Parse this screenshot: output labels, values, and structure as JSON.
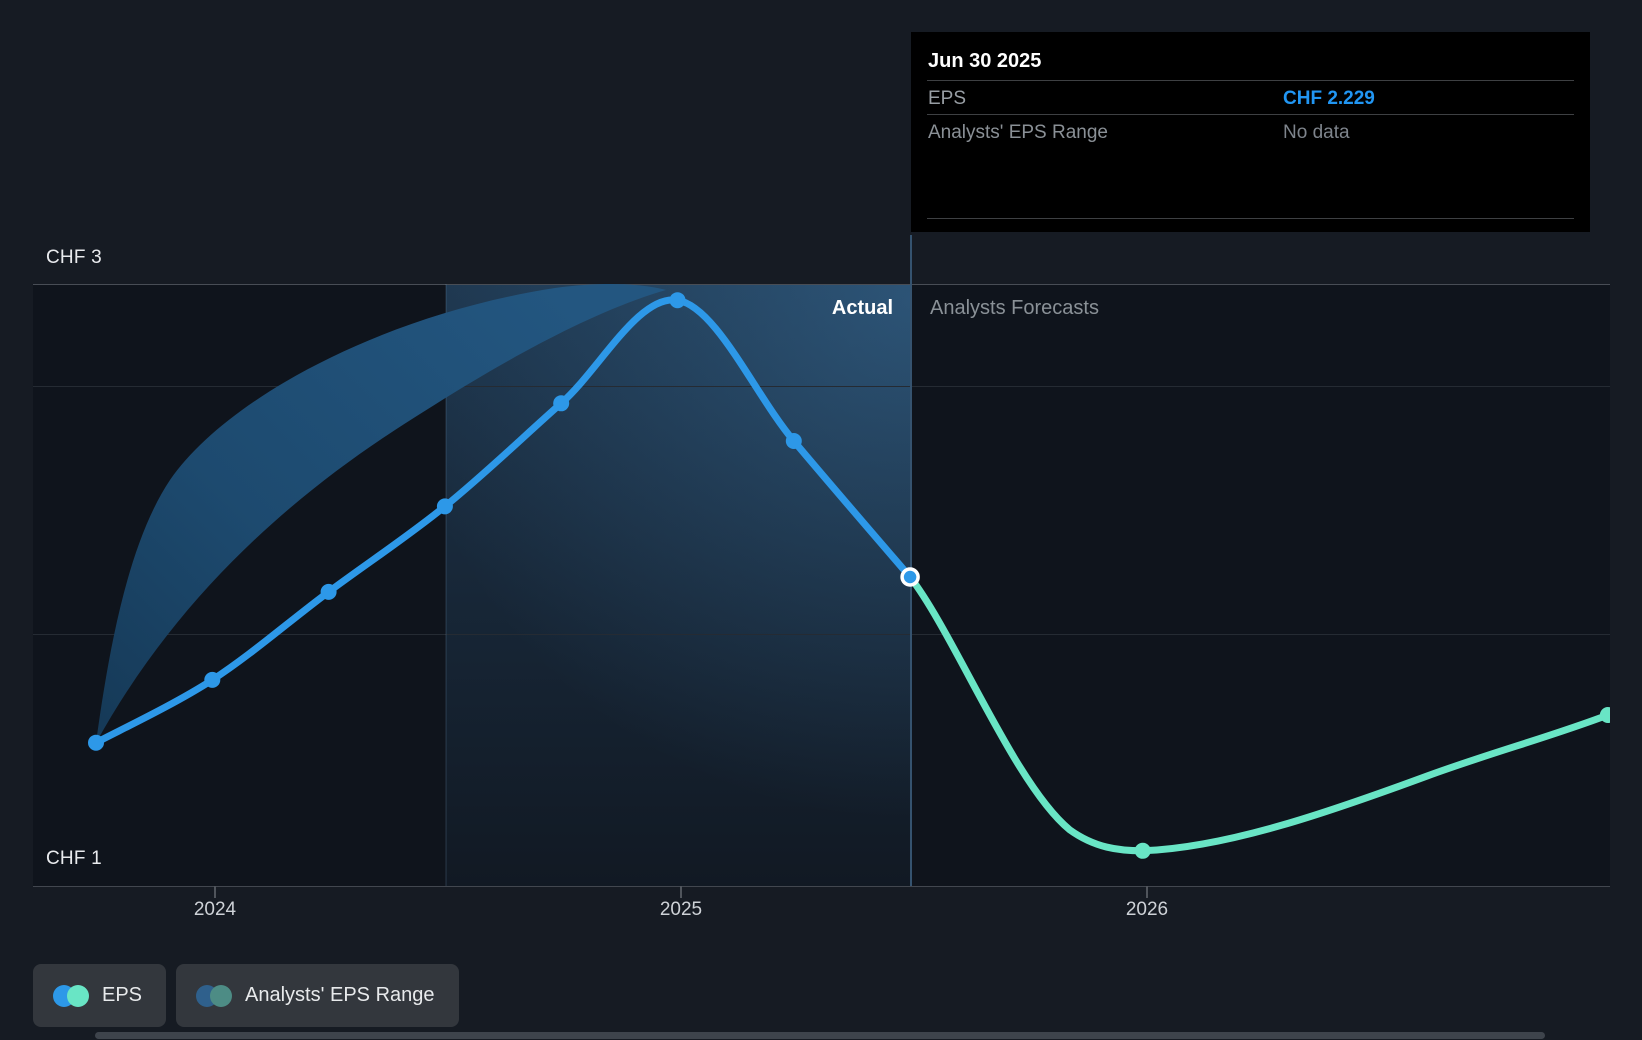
{
  "colors": {
    "eps_actual_blue": "#2D98E8",
    "eps_forecast_teal": "#69E5C5",
    "range_band_blue": "#1D4A6F",
    "tooltip_value_blue": "#2196F3",
    "divider_line": "#35536F",
    "background": "#161B23"
  },
  "tooltip": {
    "title": "Jun 30 2025",
    "rows": [
      {
        "label": "EPS",
        "value": "CHF 2.229",
        "emphasis": "blue"
      },
      {
        "label": "Analysts' EPS Range",
        "value": "No data",
        "emphasis": "muted"
      }
    ]
  },
  "chart_data": {
    "type": "line",
    "currency": "CHF",
    "y_axis": {
      "labels": [
        "CHF 3",
        "CHF 1"
      ],
      "min": 1,
      "max": 3,
      "gridline_values": [
        3,
        2,
        1
      ],
      "grid": true
    },
    "x_axis": {
      "labels": [
        "2024",
        "2025",
        "2026"
      ]
    },
    "region_labels": {
      "actual": "Actual",
      "forecast": "Analysts Forecasts"
    },
    "current_point": {
      "date": "Jun 30 2025",
      "value": 2.229
    },
    "series": [
      {
        "name": "EPS",
        "kind": "actual",
        "color": "#2D98E8",
        "points": [
          {
            "date": "Sep 2023",
            "value": 1.57
          },
          {
            "date": "Dec 2023",
            "value": 1.82
          },
          {
            "date": "Mar 2024",
            "value": 2.17
          },
          {
            "date": "Jun 2024",
            "value": 2.51
          },
          {
            "date": "Sep 2024",
            "value": 2.92
          },
          {
            "date": "Dec 2024",
            "value": 3.33
          },
          {
            "date": "Mar 2025",
            "value": 2.77
          },
          {
            "date": "Jun 2025",
            "value": 2.229
          }
        ]
      },
      {
        "name": "EPS forecast",
        "kind": "forecast",
        "color": "#69E5C5",
        "points": [
          {
            "date": "Jun 2025",
            "value": 2.229
          },
          {
            "date": "Dec 2025",
            "value": 1.14
          },
          {
            "date": "Dec 2026",
            "value": 1.68
          }
        ]
      }
    ],
    "range_band": {
      "name": "Analysts' EPS Range",
      "start": "Sep 2023",
      "end": "Dec 2024"
    }
  },
  "legend": {
    "items": [
      {
        "label": "EPS",
        "colors": [
          "#2D98E8",
          "#69E5C5"
        ]
      },
      {
        "label": "Analysts' EPS Range",
        "colors": [
          "#2F608C",
          "#4D8C85"
        ]
      }
    ]
  }
}
